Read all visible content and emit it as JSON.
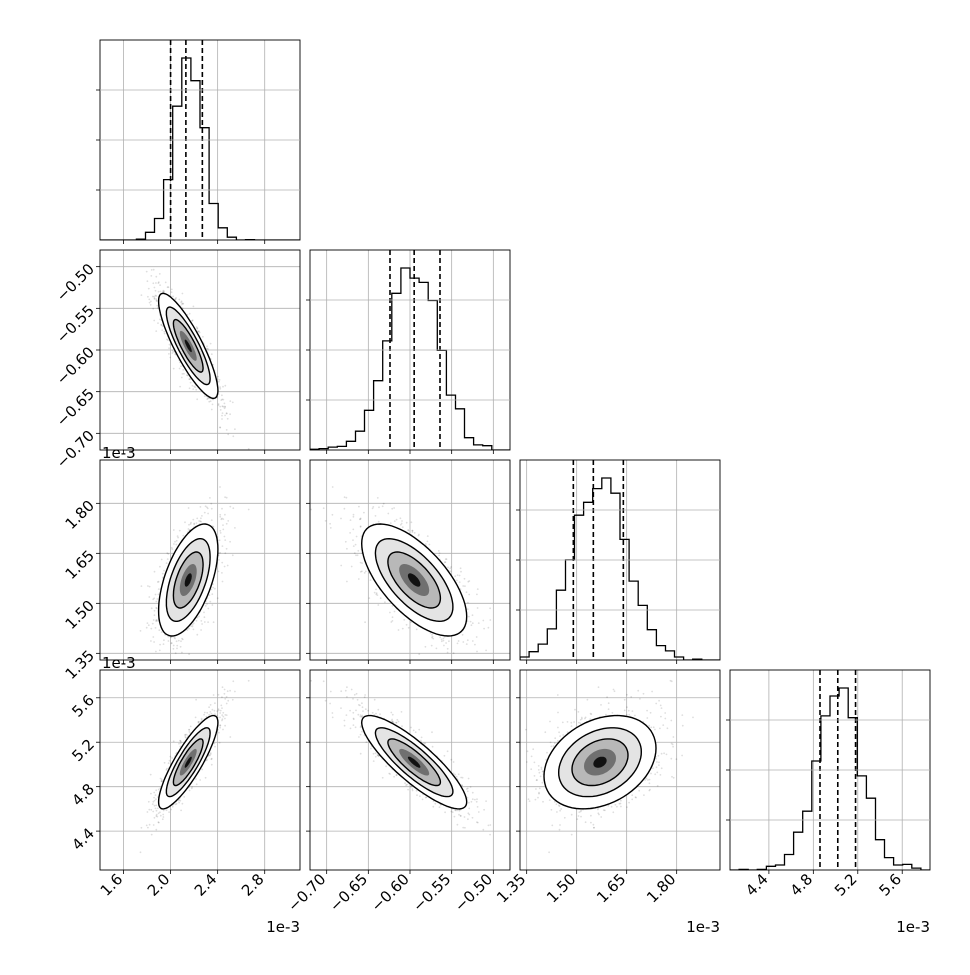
{
  "chart_data": {
    "type": "corner",
    "title": "",
    "n_params": 4,
    "params": [
      {
        "index": 0,
        "scale_label": "1e-3",
        "range": [
          1.4,
          3.1
        ],
        "ticks": [
          "1.6",
          "2.0",
          "2.4",
          "2.8"
        ],
        "tick_values": [
          1.6,
          2.0,
          2.4,
          2.8
        ],
        "mean": 2.15,
        "std": 0.12,
        "quantiles": [
          2.0,
          2.13,
          2.27
        ]
      },
      {
        "index": 1,
        "scale_label": "",
        "range": [
          -0.72,
          -0.48
        ],
        "ticks": [
          "−0.70",
          "−0.65",
          "−0.60",
          "−0.55",
          "−0.50"
        ],
        "tick_values": [
          -0.7,
          -0.65,
          -0.6,
          -0.55,
          -0.5
        ],
        "mean": -0.595,
        "std": 0.03,
        "quantiles": [
          -0.624,
          -0.595,
          -0.564
        ]
      },
      {
        "index": 2,
        "scale_label": "1e-3",
        "range": [
          1.33,
          1.93
        ],
        "ticks": [
          "1.35",
          "1.50",
          "1.65",
          "1.80"
        ],
        "tick_values": [
          1.35,
          1.5,
          1.65,
          1.8
        ],
        "mean": 1.57,
        "std": 0.08,
        "quantiles": [
          1.49,
          1.55,
          1.64
        ]
      },
      {
        "index": 3,
        "scale_label": "1e-3",
        "range": [
          4.05,
          5.85
        ],
        "ticks": [
          "4.4",
          "4.8",
          "5.2",
          "5.6"
        ],
        "tick_values": [
          4.4,
          4.8,
          5.2,
          5.6
        ],
        "mean": 5.02,
        "std": 0.2,
        "quantiles": [
          4.86,
          5.02,
          5.18
        ]
      }
    ],
    "correlations": [
      {
        "i": 1,
        "j": 0,
        "rho": -0.85
      },
      {
        "i": 2,
        "j": 0,
        "rho": 0.55
      },
      {
        "i": 2,
        "j": 1,
        "rho": -0.65
      },
      {
        "i": 3,
        "j": 0,
        "rho": 0.85
      },
      {
        "i": 3,
        "j": 1,
        "rho": -0.85
      },
      {
        "i": 3,
        "j": 2,
        "rho": 0.3
      }
    ],
    "grid": true,
    "quantile_lines": "dashed"
  }
}
